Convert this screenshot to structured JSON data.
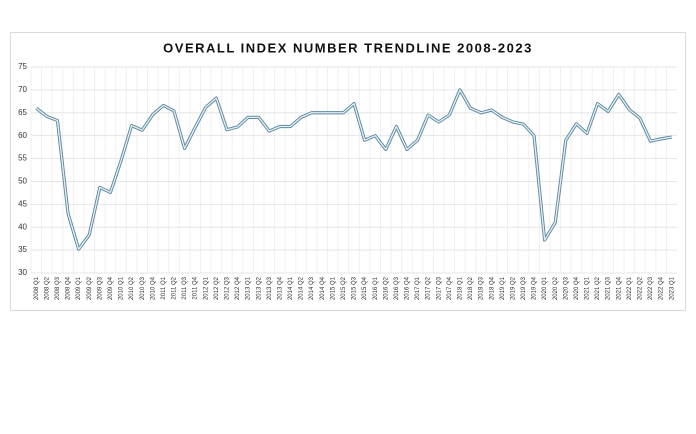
{
  "chart_data": {
    "type": "line",
    "title": "OVERALL INDEX NUMBER TRENDLINE 2008-2023",
    "categories": [
      "2008 Q1",
      "2008 Q2",
      "2008 Q3",
      "2008 Q4",
      "2009 Q1",
      "2009 Q2",
      "2009 Q3",
      "2009 Q4",
      "2010 Q1",
      "2010 Q2",
      "2010 Q3",
      "2010 Q4",
      "2011 Q1",
      "2011 Q2",
      "2011 Q3",
      "2011 Q4",
      "2012 Q1",
      "2012 Q2",
      "2012 Q3",
      "2012 Q4",
      "2013 Q1",
      "2013 Q2",
      "2013 Q3",
      "2013 Q4",
      "2014 Q1",
      "2014 Q2",
      "2014 Q3",
      "2014 Q4",
      "2015 Q1",
      "2015 Q2",
      "2015 Q3",
      "2015 Q4",
      "2016 Q1",
      "2016 Q2",
      "2016 Q3",
      "2016 Q4",
      "2017 Q1",
      "2017 Q2",
      "2017 Q3",
      "2017 Q4",
      "2018 Q1",
      "2018 Q2",
      "2018 Q3",
      "2018 Q4",
      "2019 Q1",
      "2019 Q2",
      "2019 Q3",
      "2019 Q4",
      "2020 Q1",
      "2020 Q2",
      "2020 Q3",
      "2020 Q4",
      "2021 Q1",
      "2021 Q2",
      "2021 Q3",
      "2021 Q4",
      "2022 Q1",
      "2022 Q2",
      "2022 Q3",
      "2022 Q4",
      "2023 Q1"
    ],
    "values": [
      66,
      64.2,
      63.3,
      43,
      35.2,
      38.3,
      48.7,
      47.6,
      54.5,
      62.2,
      61.2,
      64.6,
      66.6,
      65.4,
      57.2,
      61.8,
      66.2,
      68.2,
      61.3,
      61.9,
      64,
      64,
      61,
      62,
      62,
      64,
      65,
      65,
      65,
      65,
      67,
      59,
      60,
      57,
      62,
      57,
      59,
      64.5,
      63,
      64.5,
      70,
      66,
      65,
      65.6,
      64,
      63,
      62.5,
      60,
      37.2,
      41,
      59,
      62.6,
      60.5,
      67,
      65.3,
      69,
      65.7,
      63.8,
      58.8,
      59.3,
      59.7
    ],
    "color": "#5f8aa0",
    "ylim": [
      30,
      75
    ],
    "yticks": [
      30,
      35,
      40,
      45,
      50,
      55,
      60,
      65,
      70,
      75
    ],
    "grid": true
  }
}
